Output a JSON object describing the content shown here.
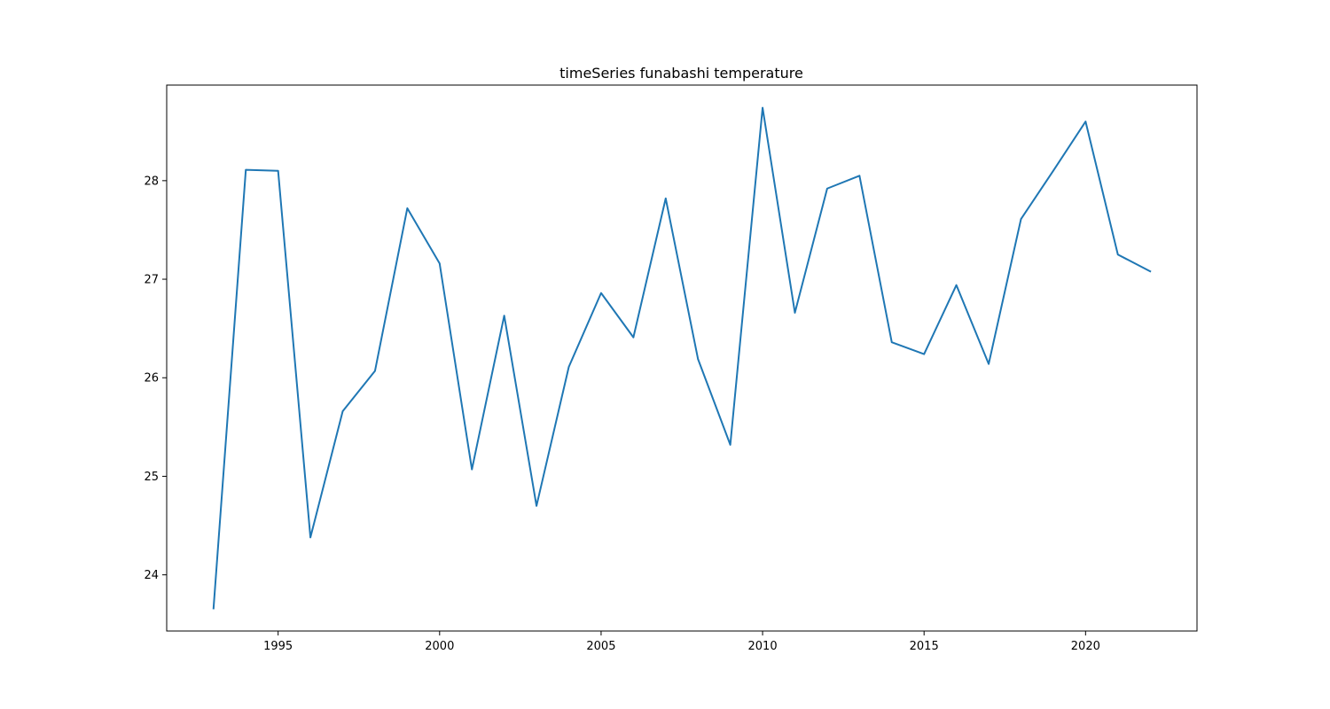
{
  "chart_data": {
    "type": "line",
    "title": "timeSeries funabashi temperature",
    "xlabel": "",
    "ylabel": "",
    "xlim": [
      1991.55,
      2023.45
    ],
    "ylim": [
      23.43,
      28.97
    ],
    "x_ticks": [
      1995,
      2000,
      2005,
      2010,
      2015,
      2020
    ],
    "y_ticks": [
      24,
      25,
      26,
      27,
      28
    ],
    "grid": false,
    "series_color": "#1f77b4",
    "x": [
      1993,
      1994,
      1995,
      1996,
      1997,
      1998,
      1999,
      2000,
      2001,
      2002,
      2003,
      2004,
      2005,
      2006,
      2007,
      2008,
      2009,
      2010,
      2011,
      2012,
      2013,
      2014,
      2015,
      2016,
      2017,
      2018,
      2019,
      2020,
      2021,
      2022
    ],
    "values": [
      23.66,
      28.11,
      28.1,
      24.38,
      25.66,
      26.07,
      27.72,
      27.16,
      25.07,
      26.63,
      24.7,
      26.11,
      26.86,
      26.41,
      27.82,
      26.19,
      25.32,
      28.74,
      26.66,
      27.92,
      28.05,
      26.36,
      26.24,
      26.94,
      26.14,
      27.61,
      28.1,
      28.6,
      27.25,
      27.08
    ]
  }
}
